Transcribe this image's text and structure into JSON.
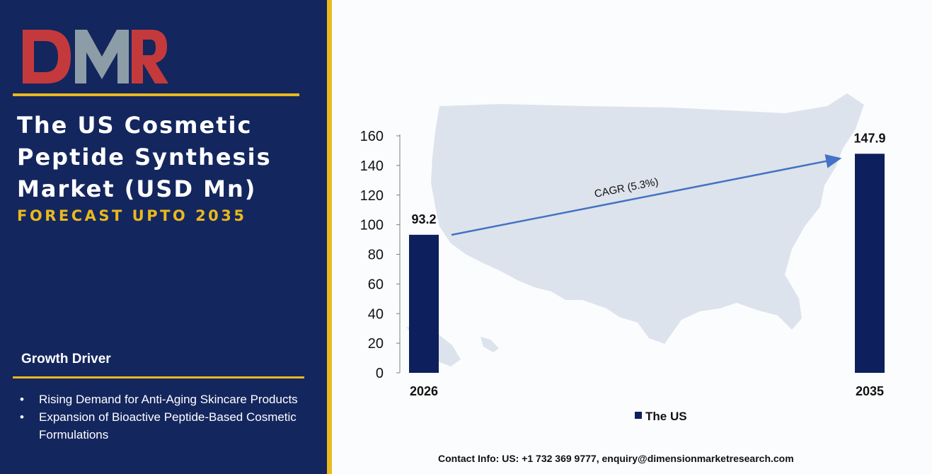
{
  "brand": {
    "logo_text": "DMR",
    "logo_colors": {
      "d": "#c43a3c",
      "m": "#8d9da7",
      "r": "#c43a3c"
    }
  },
  "header": {
    "title_lines": [
      "The US Cosmetic",
      "Peptide Synthesis",
      "Market (USD Mn)"
    ],
    "subtitle": "FORECAST UPTO 2035"
  },
  "growth_driver": {
    "heading": "Growth Driver",
    "items": [
      {
        "bullet": "•",
        "text": "Rising Demand for Anti-Aging Skincare Products"
      },
      {
        "bullet": "•",
        "text": "Expansion of Bioactive Peptide-Based Cosmetic Formulations"
      }
    ]
  },
  "contact": "Contact Info: US: +1 732 369 9777, enquiry@dimensionmarketresearch.com",
  "colors": {
    "panel": "#14265e",
    "accent": "#e9b91d",
    "bar": "#0d1f5c",
    "arrow": "#4472c4",
    "map": "#dde3ec"
  },
  "chart_data": {
    "type": "bar",
    "categories": [
      "2026",
      "2035"
    ],
    "series": [
      {
        "name": "The US",
        "values": [
          93.2,
          147.9
        ]
      }
    ],
    "data_labels": [
      "93.2",
      "147.9"
    ],
    "ylim": [
      0,
      160
    ],
    "yticks": [
      "0",
      "20",
      "40",
      "60",
      "80",
      "100",
      "120",
      "140",
      "160"
    ],
    "annotation": "CAGR (5.3%)",
    "legend_position": "bottom",
    "grid": false,
    "background": "map-of-usa"
  }
}
